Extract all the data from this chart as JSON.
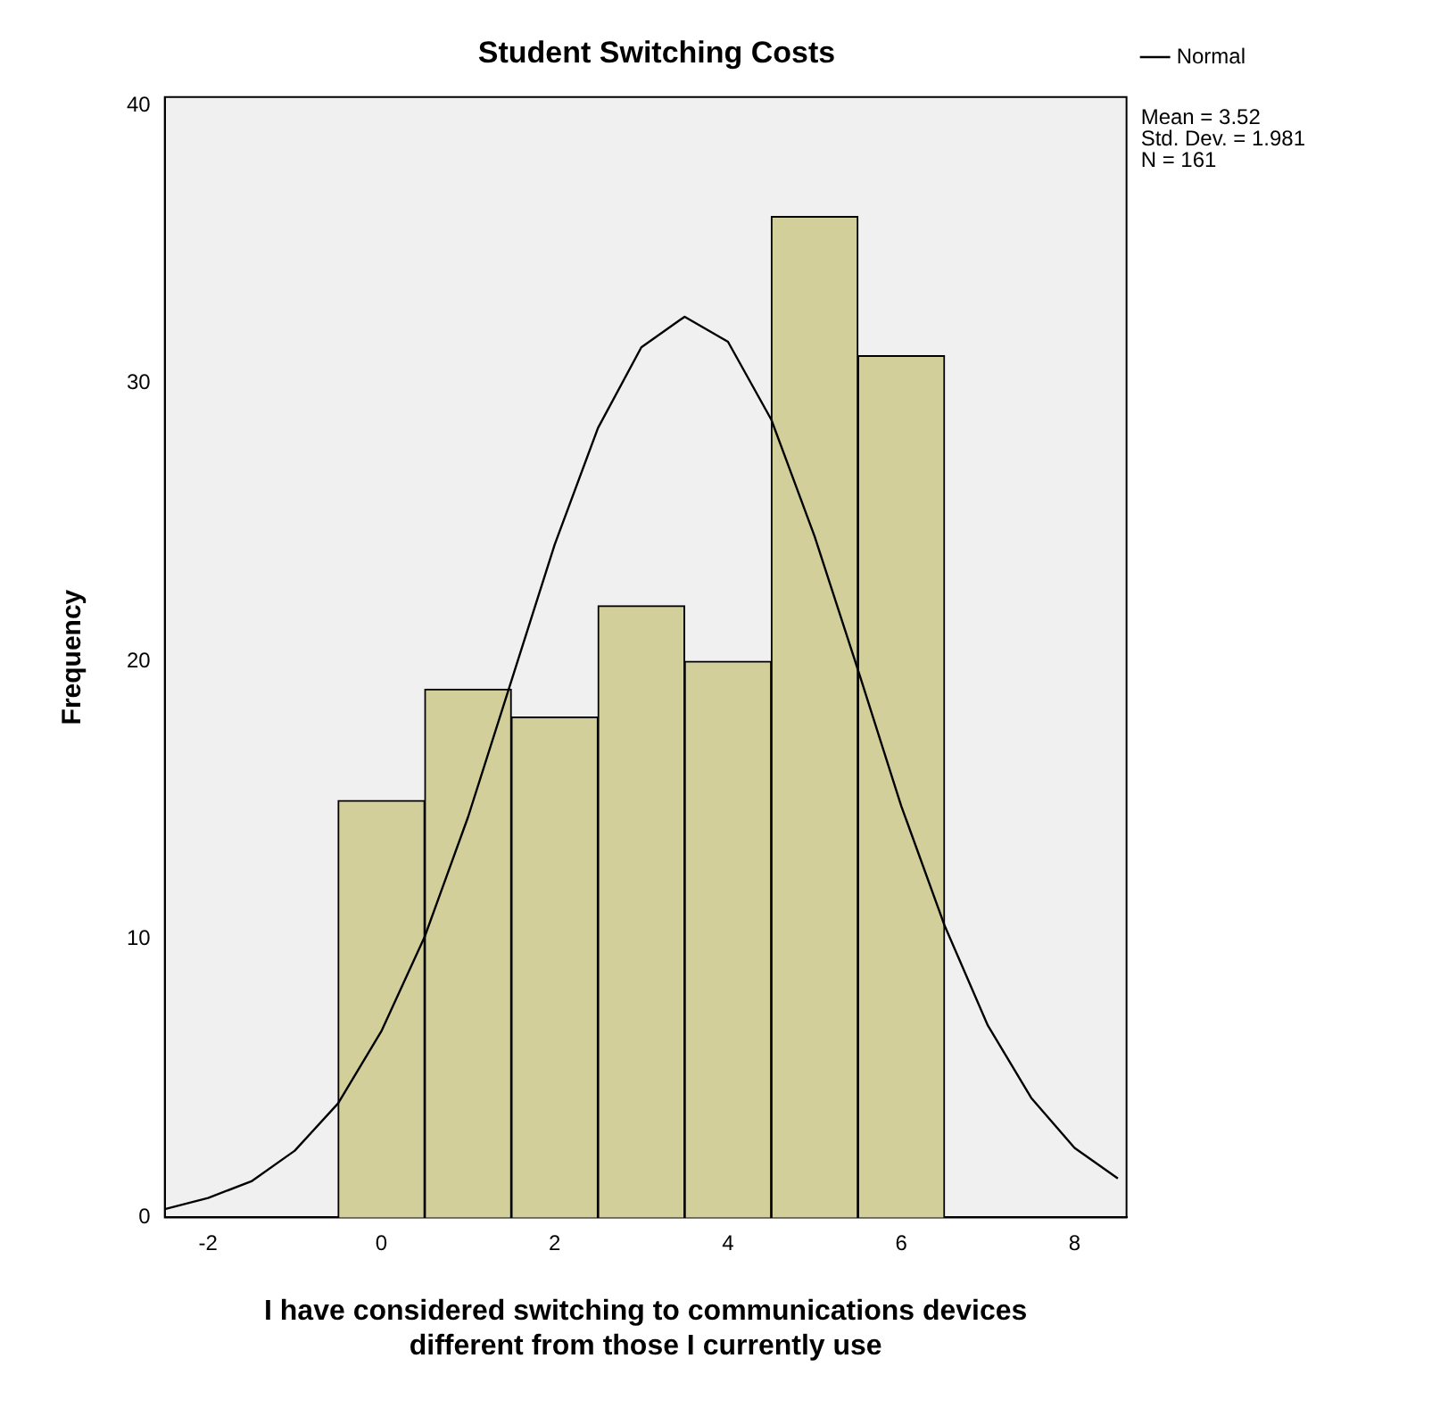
{
  "chart_data": {
    "type": "histogram",
    "title": "Student Switching Costs",
    "xlabel": "I have considered switching to communications devices different from those I currently use",
    "ylabel": "Frequency",
    "bins": [
      -0.5,
      0.5,
      1.5,
      2.5,
      3.5,
      4.5,
      5.5,
      6.5
    ],
    "values": [
      15,
      19,
      18,
      22,
      20,
      36,
      31
    ],
    "color": "#d3cf9b",
    "series": [
      {
        "name": "Normal",
        "type": "line",
        "color": "#000000",
        "x": [
          -2.5,
          -2,
          -1.5,
          -1,
          -0.5,
          0,
          0.5,
          1,
          1.5,
          2,
          2.5,
          3,
          3.5,
          4,
          4.5,
          5,
          5.5,
          6,
          6.5,
          7,
          7.5,
          8,
          8.5
        ],
        "values": [
          0.3,
          0.7,
          1.3,
          2.4,
          4.1,
          6.7,
          10.1,
          14.4,
          19.3,
          24.2,
          28.4,
          31.3,
          32.4,
          31.5,
          28.7,
          24.5,
          19.7,
          14.8,
          10.5,
          6.9,
          4.3,
          2.5,
          1.4
        ]
      }
    ],
    "xlim": [
      -2.5,
      8.6
    ],
    "xticks": [
      -2,
      0,
      2,
      4,
      6,
      8
    ],
    "ylim": [
      0,
      40.3
    ],
    "yticks": [
      0,
      10,
      20,
      30,
      40
    ],
    "grid": false,
    "legend": "top right",
    "marker": "none",
    "line_style": "solid",
    "annotations": [
      "Mean = 3.52",
      "Std. Dev. = 1.981",
      "N = 161"
    ]
  }
}
